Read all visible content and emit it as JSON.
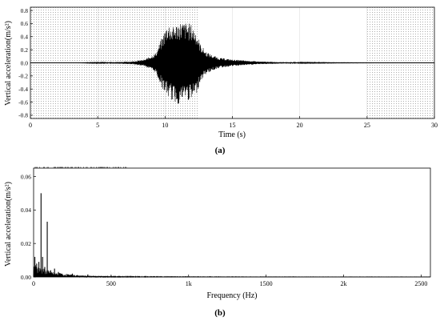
{
  "chart_data": [
    {
      "type": "line",
      "panel_label": "(a)",
      "xlabel": "Time (s)",
      "ylabel": "Vertical acceleration(m/s²)",
      "xlim": [
        0,
        30
      ],
      "ylim": [
        -0.85,
        0.85
      ],
      "xticks": [
        0,
        5,
        10,
        15,
        20,
        25,
        30
      ],
      "xtick_labels": [
        "0",
        "5",
        "10",
        "15",
        "20",
        "25",
        "30"
      ],
      "yticks": [
        -0.8,
        -0.6,
        -0.4,
        -0.2,
        0,
        0.2,
        0.4,
        0.6,
        0.8
      ],
      "ytick_labels": [
        "-0.8",
        "-0.6",
        "-0.4",
        "-0.2",
        "0.0",
        "0.2",
        "0.4",
        "0.6",
        "0.8"
      ],
      "shaded_x_ranges": [
        [
          0,
          12.5
        ],
        [
          25,
          30
        ]
      ],
      "grid": true,
      "series": [
        {
          "color": "#000000",
          "envelope": {
            "t": [
              0,
              3.5,
              4.5,
              6,
              7.5,
              8.5,
              9.3,
              9.8,
              10.2,
              10.6,
              11,
              11.5,
              11.9,
              12.3,
              12.6,
              13,
              13.5,
              14,
              15,
              16,
              17,
              18.5,
              20,
              23,
              26,
              30
            ],
            "upper": [
              0,
              0.002,
              0.006,
              0.01,
              0.02,
              0.05,
              0.15,
              0.4,
              0.62,
              0.55,
              0.63,
              0.62,
              0.6,
              0.5,
              0.3,
              0.18,
              0.12,
              0.08,
              0.05,
              0.035,
              0.02,
              0.012,
              0.008,
              0.004,
              0.002,
              0.002
            ],
            "lower": [
              0,
              -0.002,
              -0.006,
              -0.01,
              -0.02,
              -0.05,
              -0.15,
              -0.4,
              -0.52,
              -0.6,
              -0.64,
              -0.55,
              -0.6,
              -0.5,
              -0.3,
              -0.18,
              -0.12,
              -0.08,
              -0.05,
              -0.035,
              -0.02,
              -0.012,
              -0.008,
              -0.004,
              -0.002,
              -0.002
            ]
          }
        }
      ]
    },
    {
      "type": "line",
      "panel_label": "(b)",
      "xlabel": "Frequency (Hz)",
      "ylabel": "Vertical acceleration(m/s²)",
      "xlim": [
        0,
        2560
      ],
      "ylim": [
        0,
        0.065
      ],
      "xticks": [
        0,
        500,
        1000,
        1500,
        2000,
        2500
      ],
      "xtick_labels": [
        "0",
        "500",
        "1k",
        "1500",
        "2k",
        "2500"
      ],
      "yticks": [
        0,
        0.02,
        0.04,
        0.06
      ],
      "ytick_labels": [
        "0.00",
        "0.02",
        "0.04",
        "0.06"
      ],
      "grid": false,
      "series": [
        {
          "color": "#000000",
          "peaks": [
            {
              "f": 8,
              "a": 0.012
            },
            {
              "f": 20,
              "a": 0.008
            },
            {
              "f": 34,
              "a": 0.009
            },
            {
              "f": 48,
              "a": 0.05
            },
            {
              "f": 58,
              "a": 0.012
            },
            {
              "f": 72,
              "a": 0.006
            },
            {
              "f": 88,
              "a": 0.033
            },
            {
              "f": 110,
              "a": 0.004
            },
            {
              "f": 135,
              "a": 0.005
            },
            {
              "f": 160,
              "a": 0.003
            },
            {
              "f": 250,
              "a": 0.002
            },
            {
              "f": 350,
              "a": 0.0015
            },
            {
              "f": 500,
              "a": 0.0008
            }
          ]
        }
      ]
    }
  ]
}
